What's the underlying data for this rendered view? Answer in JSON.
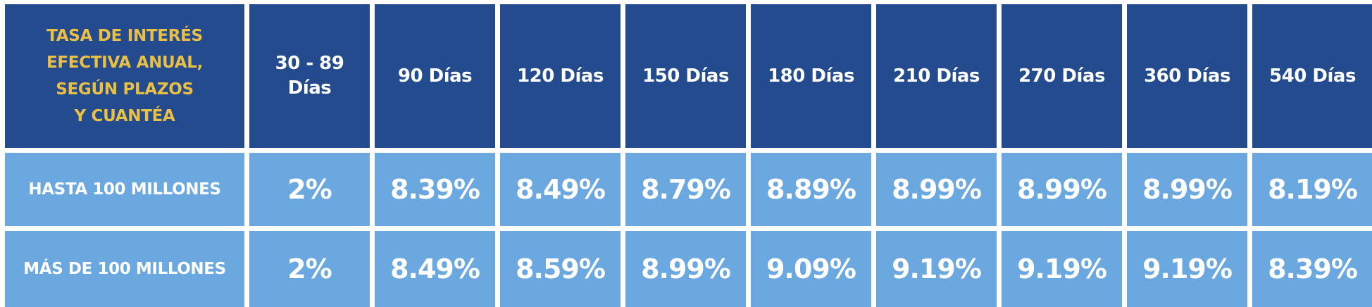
{
  "table": {
    "header_title": "TASA DE INTERÉS\nEFECTIVA ANUAL,\nSEGÚN PLAZOS\nY CUANTÉA",
    "columns": [
      "30 - 89\nDías",
      "90 Días",
      "120 Días",
      "150 Días",
      "180 Días",
      "210 Días",
      "270 Días",
      "360 Días",
      "540 Días"
    ],
    "rows": [
      {
        "label": "HASTA 100 MILLONES",
        "values": [
          "2%",
          "8.39%",
          "8.49%",
          "8.79%",
          "8.89%",
          "8.99%",
          "8.99%",
          "8.99%",
          "8.19%"
        ]
      },
      {
        "label": "MÁS DE 100 MILLONES",
        "values": [
          "2%",
          "8.49%",
          "8.59%",
          "8.99%",
          "9.09%",
          "9.19%",
          "9.19%",
          "9.19%",
          "8.39%"
        ]
      }
    ],
    "colors": {
      "header_background": "#234b8d",
      "body_background": "#6aa8df",
      "title_text": "#e9bf45",
      "cell_text": "#ffffff"
    }
  }
}
